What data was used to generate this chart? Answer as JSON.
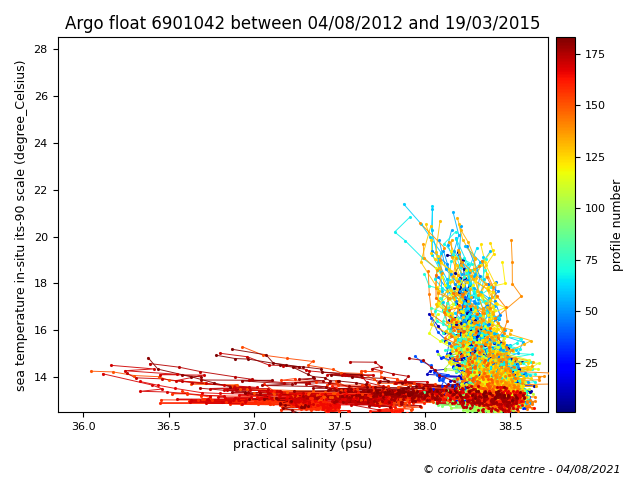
{
  "title": "Argo float 6901042 between 04/08/2012 and 19/03/2015",
  "xlabel": "practical salinity (psu)",
  "ylabel": "sea temperature in-situ its-90 scale (degree_Celsius)",
  "colorbar_label": "profile number",
  "xlim": [
    35.85,
    38.72
  ],
  "ylim": [
    12.5,
    28.5
  ],
  "xticks": [
    36.0,
    36.5,
    37.0,
    37.5,
    38.0,
    38.5
  ],
  "yticks": [
    14,
    16,
    18,
    20,
    22,
    24,
    26,
    28
  ],
  "n_profiles": 183,
  "colormap": "jet",
  "vmin": 1,
  "vmax": 183,
  "copyright": "© coriolis data centre - 04/08/2021",
  "figsize": [
    6.4,
    4.8
  ],
  "dpi": 100,
  "title_fontsize": 12,
  "label_fontsize": 9,
  "copyright_fontsize": 8,
  "markersize": 2.5,
  "linewidth": 0.7
}
